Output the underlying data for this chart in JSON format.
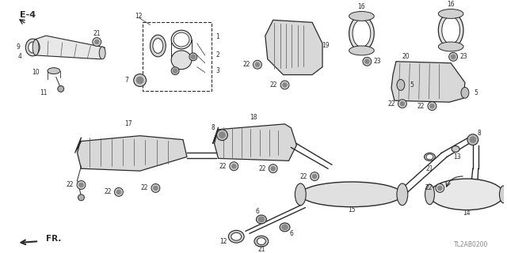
{
  "bg_color": "#ffffff",
  "line_color": "#2a2a2a",
  "gray": "#555555",
  "light_gray": "#cccccc",
  "diagram_code": "TL2AB0200",
  "e_label": "E-4",
  "fr_label": "FR."
}
